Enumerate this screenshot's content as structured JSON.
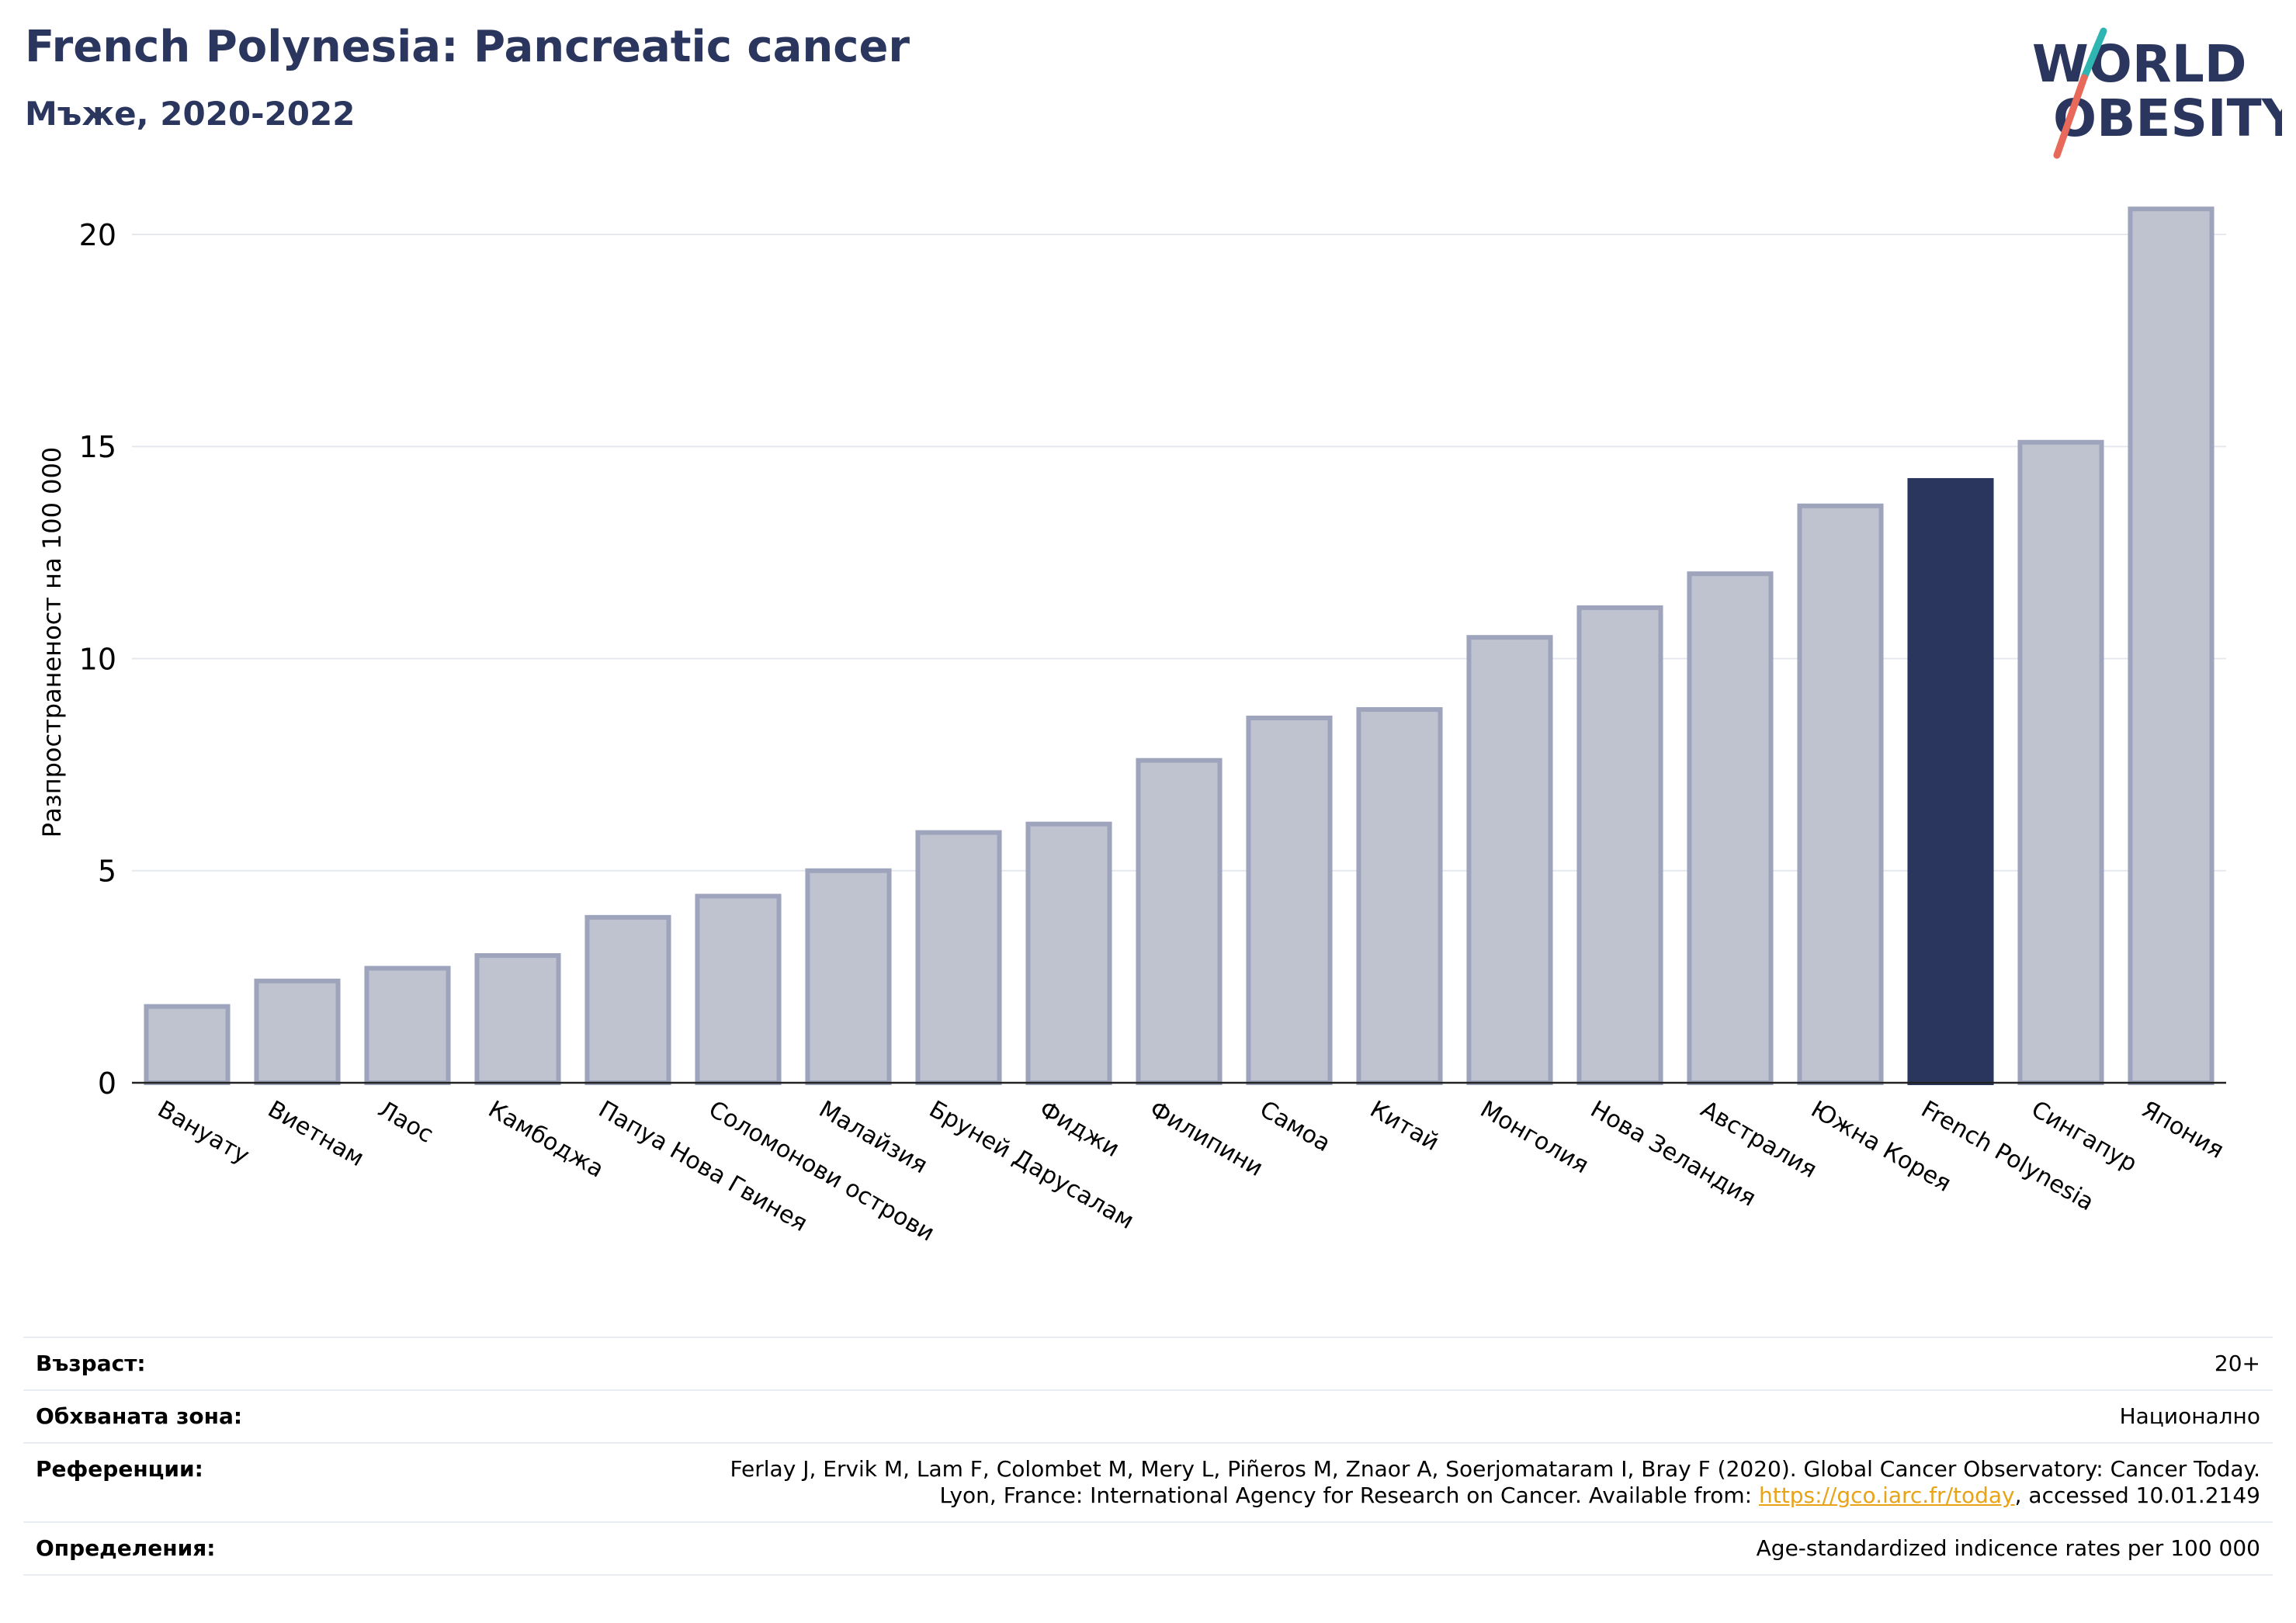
{
  "header": {
    "title": "French Polynesia: Pancreatic cancer",
    "subtitle": "Мъже, 2020-2022"
  },
  "logo": {
    "line1": "WORLD",
    "line2": "OBESITY",
    "colors": {
      "text": "#2a365e",
      "slash_top": "#2fb5b2",
      "slash_bottom": "#e8685a"
    }
  },
  "chart_data": {
    "type": "bar",
    "title": "French Polynesia: Pancreatic cancer",
    "subtitle": "Мъже, 2020-2022",
    "ylabel": "Разпространеност  на 100 000",
    "xlabel": "",
    "ylim": [
      0,
      21.5
    ],
    "yticks": [
      0,
      5,
      10,
      15,
      20
    ],
    "grid": true,
    "categories": [
      "Вануату",
      "Виетнам",
      "Лаос",
      "Камбоджа",
      "Папуа Нова Гвинея",
      "Соломонови острови",
      "Малайзия",
      "Бруней Дарусалам",
      "Фиджи",
      "Филипини",
      "Самоа",
      "Китай",
      "Монголия",
      "Нова Зеландия",
      "Австралия",
      "Южна Корея",
      "French Polynesia",
      "Сингапур",
      "Япония"
    ],
    "values": [
      1.8,
      2.4,
      2.7,
      3.0,
      3.9,
      4.4,
      5.0,
      5.9,
      6.1,
      7.6,
      8.6,
      8.8,
      10.5,
      11.2,
      12.0,
      13.6,
      14.2,
      15.1,
      20.6
    ],
    "highlight": "French Polynesia",
    "colors": {
      "bar": "#bfc3d0",
      "bar_edge": "#9ea4bb",
      "highlight": "#2a365e",
      "grid": "#e6e8ef"
    }
  },
  "info": {
    "age_label": "Възраст:",
    "age_value": "20+",
    "coverage_label": "Обхваната зона:",
    "coverage_value": "Национално",
    "references_label": "Референции:",
    "references_line1": "Ferlay J, Ervik M, Lam F, Colombet M, Mery L, Piñeros M, Znaor A, Soerjomataram I, Bray F (2020). Global Cancer Observatory: Cancer Today.",
    "references_line2_pre": "Lyon, France: International Agency for Research on Cancer. Available from: ",
    "references_link": "https://gco.iarc.fr/today",
    "references_line2_post": ", accessed 10.01.2149",
    "definitions_label": "Определения:",
    "definitions_value": "Age-standardized indicence rates per 100 000"
  }
}
